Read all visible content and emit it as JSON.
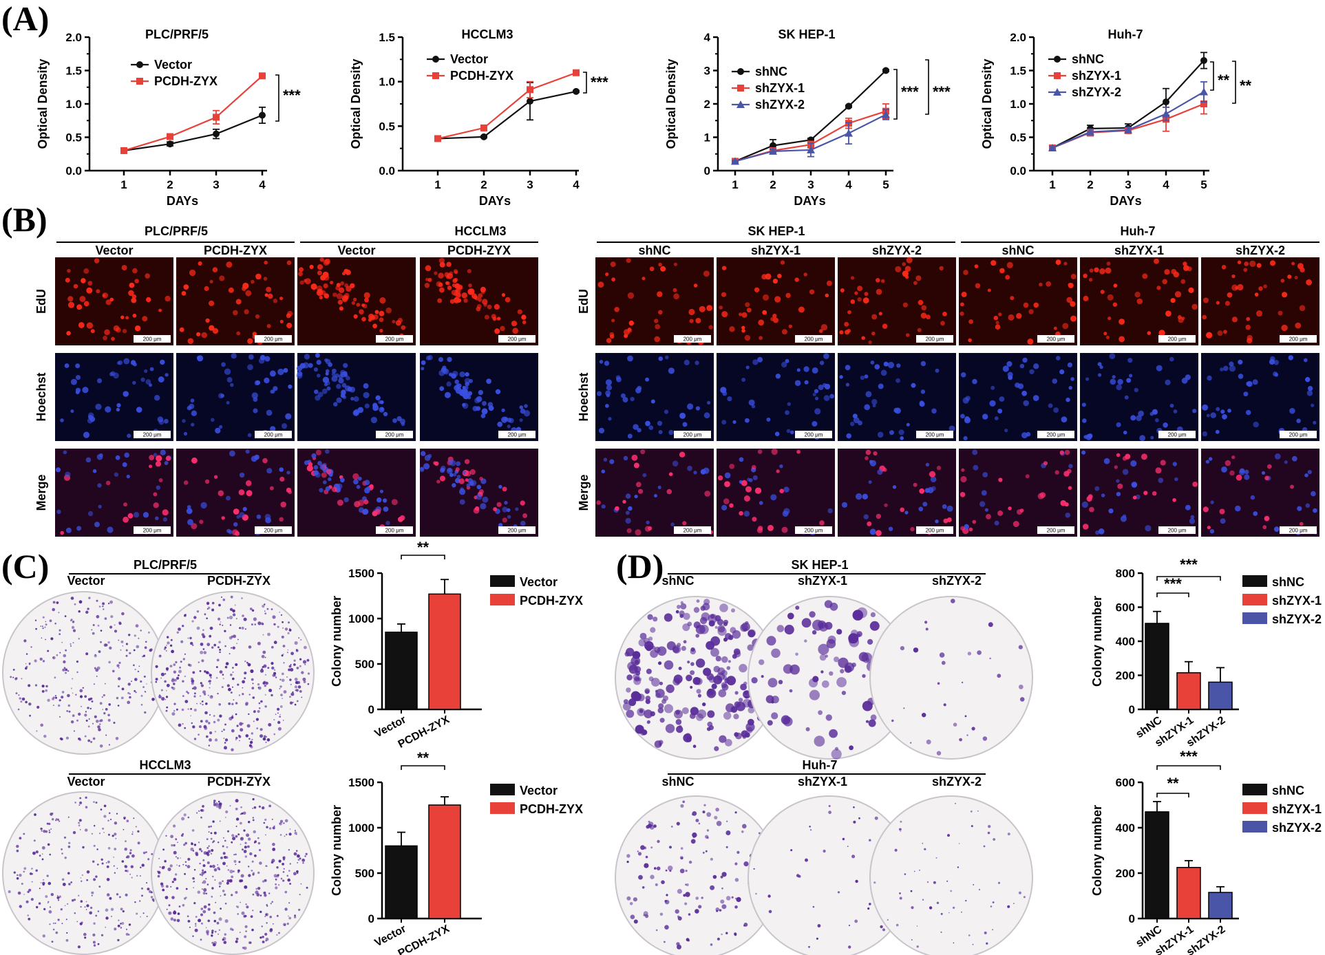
{
  "panel_letters": [
    "(A)",
    "(B)",
    "(C)",
    "(D)"
  ],
  "scale_bar_text": "200 μm",
  "colors": {
    "black": "#111111",
    "red": "#e8413a",
    "blue": "#4a55a8",
    "edu_bg": "#2a0303",
    "edu_cell": "#ff2a1a",
    "hoechst_bg": "#050725",
    "hoechst_cell": "#3a4fe0",
    "merge_bg": "#22051e",
    "merge_cell": "#ff2f6f",
    "plate_bg": "#f3f1f2",
    "colony": "#5a2d9a"
  },
  "chart_data": [
    {
      "type": "line",
      "title": "PLC/PRF/5",
      "xlabel": "DAYs",
      "ylabel": "Optical Density",
      "x": [
        1,
        2,
        3,
        4
      ],
      "xticks": [
        "1",
        "2",
        "3",
        "4"
      ],
      "ylim": [
        0,
        2.0
      ],
      "yticks": [
        "0.0",
        "0.5",
        "1.0",
        "1.5",
        "2.0"
      ],
      "series": [
        {
          "name": "Vector",
          "color": "black",
          "marker": "circle",
          "values": [
            0.3,
            0.4,
            0.55,
            0.83
          ],
          "errors": [
            0.02,
            0.03,
            0.07,
            0.12
          ]
        },
        {
          "name": "PCDH-ZYX",
          "color": "red",
          "marker": "square",
          "values": [
            0.3,
            0.51,
            0.8,
            1.42
          ],
          "errors": [
            0.02,
            0.03,
            0.1,
            0.03
          ]
        }
      ],
      "significance": [
        "***"
      ],
      "legend": "top-left"
    },
    {
      "type": "line",
      "title": "HCCLM3",
      "xlabel": "DAYs",
      "ylabel": "Optical Density",
      "x": [
        1,
        2,
        3,
        4
      ],
      "xticks": [
        "1",
        "2",
        "3",
        "4"
      ],
      "ylim": [
        0,
        1.5
      ],
      "yticks": [
        "0.0",
        "0.5",
        "1.0",
        "1.5"
      ],
      "series": [
        {
          "name": "Vector",
          "color": "black",
          "marker": "circle",
          "values": [
            0.36,
            0.38,
            0.78,
            0.89
          ],
          "errors": [
            0.01,
            0.01,
            0.21,
            0.01
          ]
        },
        {
          "name": "PCDH-ZYX",
          "color": "red",
          "marker": "square",
          "values": [
            0.36,
            0.48,
            0.91,
            1.1
          ],
          "errors": [
            0.01,
            0.01,
            0.09,
            0.01
          ]
        }
      ],
      "significance": [
        "***"
      ],
      "legend": "top-left"
    },
    {
      "type": "line",
      "title": "SK HEP-1",
      "xlabel": "DAYs",
      "ylabel": "Optical Density",
      "x": [
        1,
        2,
        3,
        4,
        5
      ],
      "xticks": [
        "1",
        "2",
        "3",
        "4",
        "5"
      ],
      "ylim": [
        0,
        4
      ],
      "yticks": [
        "0",
        "1",
        "2",
        "3",
        "4"
      ],
      "series": [
        {
          "name": "shNC",
          "color": "black",
          "marker": "circle",
          "values": [
            0.28,
            0.75,
            0.92,
            1.93,
            3.0
          ],
          "errors": [
            0.02,
            0.18,
            0.05,
            0.03,
            0.03
          ]
        },
        {
          "name": "shZYX-1",
          "color": "red",
          "marker": "square",
          "values": [
            0.28,
            0.6,
            0.78,
            1.42,
            1.78
          ],
          "errors": [
            0.02,
            0.08,
            0.1,
            0.15,
            0.22
          ]
        },
        {
          "name": "shZYX-2",
          "color": "blue",
          "marker": "triangle",
          "values": [
            0.28,
            0.58,
            0.62,
            1.12,
            1.68
          ],
          "errors": [
            0.02,
            0.06,
            0.2,
            0.32,
            0.15
          ]
        }
      ],
      "significance": [
        "***",
        "***"
      ],
      "legend": "top-left"
    },
    {
      "type": "line",
      "title": "Huh-7",
      "xlabel": "DAYs",
      "ylabel": "Optical Density",
      "x": [
        1,
        2,
        3,
        4,
        5
      ],
      "xticks": [
        "1",
        "2",
        "3",
        "4",
        "5"
      ],
      "ylim": [
        0,
        2.0
      ],
      "yticks": [
        "0.0",
        "0.5",
        "1.0",
        "1.5",
        "2.0"
      ],
      "series": [
        {
          "name": "shNC",
          "color": "black",
          "marker": "circle",
          "values": [
            0.34,
            0.63,
            0.64,
            1.03,
            1.65
          ],
          "errors": [
            0.02,
            0.05,
            0.06,
            0.2,
            0.12
          ]
        },
        {
          "name": "shZYX-1",
          "color": "red",
          "marker": "square",
          "values": [
            0.34,
            0.57,
            0.6,
            0.77,
            1.0
          ],
          "errors": [
            0.02,
            0.05,
            0.04,
            0.18,
            0.15
          ]
        },
        {
          "name": "shZYX-2",
          "color": "blue",
          "marker": "triangle",
          "values": [
            0.34,
            0.58,
            0.61,
            0.85,
            1.18
          ],
          "errors": [
            0.02,
            0.04,
            0.04,
            0.1,
            0.15
          ]
        }
      ],
      "significance": [
        "**",
        "**"
      ],
      "legend": "top-left"
    },
    {
      "type": "bar",
      "categories": [
        "Vector",
        "PCDH-ZYX"
      ],
      "colors": [
        "black",
        "red"
      ],
      "values": [
        850,
        1270
      ],
      "errors": [
        90,
        160
      ],
      "ylabel": "Colony number",
      "ylim": [
        0,
        1500
      ],
      "yticks": [
        "0",
        "500",
        "1000",
        "1500"
      ],
      "legend": [
        "Vector",
        "PCDH-ZYX"
      ],
      "significance": [
        {
          "from": 0,
          "to": 1,
          "label": "**"
        }
      ]
    },
    {
      "type": "bar",
      "categories": [
        "Vector",
        "PCDH-ZYX"
      ],
      "colors": [
        "black",
        "red"
      ],
      "values": [
        800,
        1250
      ],
      "errors": [
        150,
        90
      ],
      "ylabel": "Colony number",
      "ylim": [
        0,
        1500
      ],
      "yticks": [
        "0",
        "500",
        "1000",
        "1500"
      ],
      "legend": [
        "Vector",
        "PCDH-ZYX"
      ],
      "significance": [
        {
          "from": 0,
          "to": 1,
          "label": "**"
        }
      ]
    },
    {
      "type": "bar",
      "categories": [
        "shNC",
        "shZYX-1",
        "shZYX-2"
      ],
      "colors": [
        "black",
        "red",
        "blue"
      ],
      "values": [
        505,
        215,
        160
      ],
      "errors": [
        70,
        65,
        85
      ],
      "ylabel": "Colony number",
      "ylim": [
        0,
        800
      ],
      "yticks": [
        "0",
        "200",
        "400",
        "600",
        "800"
      ],
      "legend": [
        "shNC",
        "shZYX-1",
        "shZYX-2"
      ],
      "significance": [
        {
          "from": 0,
          "to": 1,
          "label": "***"
        },
        {
          "from": 0,
          "to": 2,
          "label": "***"
        }
      ]
    },
    {
      "type": "bar",
      "categories": [
        "shNC",
        "shZYX-1",
        "shZYX-2"
      ],
      "colors": [
        "black",
        "red",
        "blue"
      ],
      "values": [
        470,
        225,
        115
      ],
      "errors": [
        45,
        30,
        25
      ],
      "ylabel": "Colony number",
      "ylim": [
        0,
        600
      ],
      "yticks": [
        "0",
        "200",
        "400",
        "600"
      ],
      "legend": [
        "shNC",
        "shZYX-1",
        "shZYX-2"
      ],
      "significance": [
        {
          "from": 0,
          "to": 1,
          "label": "**"
        },
        {
          "from": 0,
          "to": 2,
          "label": "***"
        }
      ]
    }
  ],
  "panel_b": {
    "row_labels": [
      "EdU",
      "Hoechst",
      "Merge"
    ],
    "left": {
      "cell_lines": [
        "PLC/PRF/5",
        "HCCLM3"
      ],
      "conditions": [
        "Vector",
        "PCDH-ZYX",
        "Vector",
        "PCDH-ZYX"
      ]
    },
    "right": {
      "cell_lines": [
        "SK HEP-1",
        "Huh-7"
      ],
      "conditions": [
        "shNC",
        "shZYX-1",
        "shZYX-2",
        "shNC",
        "shZYX-1",
        "shZYX-2"
      ]
    }
  },
  "panel_c": {
    "plates": [
      {
        "title": "PLC/PRF/5",
        "labels": [
          "Vector",
          "PCDH-ZYX"
        ]
      },
      {
        "title": "HCCLM3",
        "labels": [
          "Vector",
          "PCDH-ZYX"
        ]
      }
    ]
  },
  "panel_d": {
    "plates": [
      {
        "title": "SK HEP-1",
        "labels": [
          "shNC",
          "shZYX-1",
          "shZYX-2"
        ]
      },
      {
        "title": "Huh-7",
        "labels": [
          "shNC",
          "shZYX-1",
          "shZYX-2"
        ]
      }
    ]
  }
}
